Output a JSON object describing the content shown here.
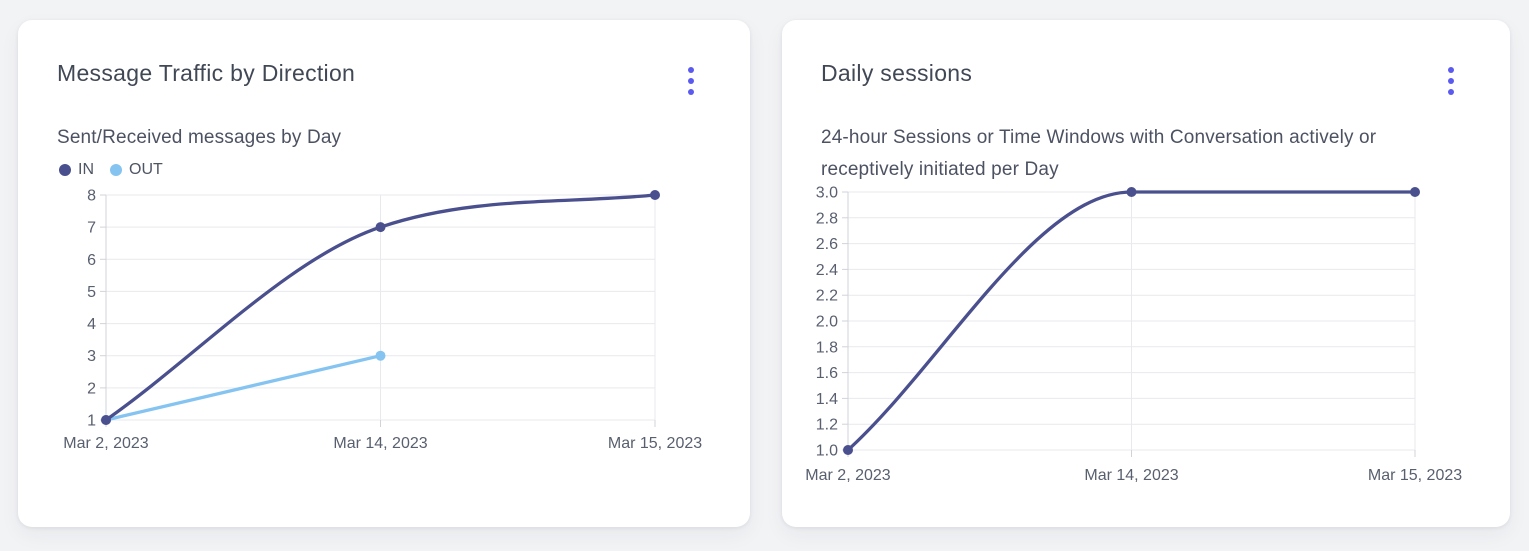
{
  "colors": {
    "menu_accent": "#5a5af0",
    "series_in": "#4a4f8e",
    "series_out": "#85c4f1",
    "grid": "#e8e9ed",
    "axis": "#d2d3d9"
  },
  "cards": [
    {
      "title": "Message Traffic by Direction",
      "subtitle": "Sent/Received messages by Day",
      "menu_icon": "kebab-menu-icon",
      "legend": [
        {
          "label": "IN",
          "color": "#4a4f8e"
        },
        {
          "label": "OUT",
          "color": "#85c4f1"
        }
      ]
    },
    {
      "title": "Daily sessions",
      "subtitle": "24-hour Sessions or Time Windows with Conversation actively or receptively initiated per Day",
      "menu_icon": "kebab-menu-icon",
      "legend": []
    }
  ],
  "chart_data": [
    {
      "type": "line",
      "title": "Message Traffic by Direction",
      "subtitle": "Sent/Received messages by Day",
      "categories": [
        "Mar 2, 2023",
        "Mar 14, 2023",
        "Mar 15, 2023"
      ],
      "series": [
        {
          "name": "IN",
          "color": "#4a4f8e",
          "values": [
            1,
            7,
            8
          ]
        },
        {
          "name": "OUT",
          "color": "#85c4f1",
          "values": [
            1,
            3,
            null
          ]
        }
      ],
      "ylim": [
        1,
        8
      ],
      "yticks": [
        "8",
        "7",
        "6",
        "5",
        "4",
        "3",
        "2",
        "1"
      ],
      "grid": true,
      "legend_position": "top-left",
      "curve": "monotone"
    },
    {
      "type": "line",
      "title": "Daily sessions",
      "subtitle": "24-hour Sessions or Time Windows with Conversation actively or receptively initiated per Day",
      "categories": [
        "Mar 2, 2023",
        "Mar 14, 2023",
        "Mar 15, 2023"
      ],
      "series": [
        {
          "name": "Daily sessions",
          "color": "#4a4f8e",
          "values": [
            1,
            3,
            3
          ]
        }
      ],
      "ylim": [
        1,
        3
      ],
      "yticks": [
        "3.0",
        "2.8",
        "2.6",
        "2.4",
        "2.2",
        "2.0",
        "1.8",
        "1.6",
        "1.4",
        "1.2",
        "1.0"
      ],
      "grid": true,
      "legend_position": "none",
      "curve": "monotone"
    }
  ]
}
